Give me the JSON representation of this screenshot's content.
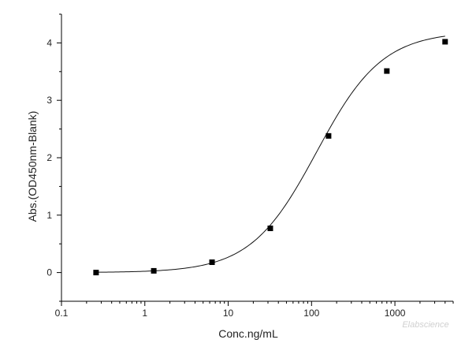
{
  "chart_data": {
    "type": "scatter",
    "title": "",
    "xlabel": "Conc.ng/mL",
    "ylabel": "Abs.(OD450nm-Blank)",
    "x_scale": "log",
    "xlim": [
      0.1,
      5000
    ],
    "ylim": [
      -0.5,
      4.5
    ],
    "x_ticks": [
      0.1,
      1,
      10,
      100,
      1000
    ],
    "x_tick_labels": [
      "0.1",
      "1",
      "10",
      "100",
      "1000"
    ],
    "y_ticks": [
      0,
      1,
      2,
      3,
      4
    ],
    "y_tick_labels": [
      "0",
      "1",
      "2",
      "3",
      "4"
    ],
    "grid": false,
    "legend": "none",
    "series": [
      {
        "marker": "square",
        "points": [
          {
            "x": 0.26,
            "y": 0.0
          },
          {
            "x": 1.28,
            "y": 0.03
          },
          {
            "x": 6.4,
            "y": 0.18
          },
          {
            "x": 32,
            "y": 0.77
          },
          {
            "x": 160,
            "y": 2.38
          },
          {
            "x": 800,
            "y": 3.51
          },
          {
            "x": 4000,
            "y": 4.02
          }
        ]
      }
    ],
    "fit_curve": {
      "model": "4PL",
      "bottom": 0.0,
      "top": 4.2,
      "ec50": 115,
      "hill": 1.1
    },
    "colors": {
      "marker": "#000000",
      "curve": "#111111",
      "axis": "#000000"
    }
  },
  "watermark": "Elabscience"
}
